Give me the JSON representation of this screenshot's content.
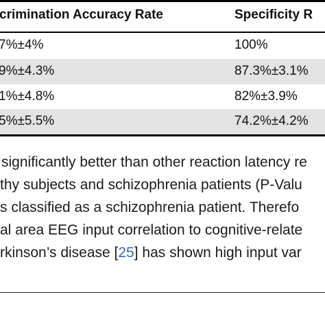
{
  "table": {
    "headers": {
      "col1": "crimination Accuracy Rate",
      "col2": "Specificity R"
    },
    "rows": [
      {
        "col1": "7%±4%",
        "col2": "100%"
      },
      {
        "col1": "9%±4.3%",
        "col2": "87.3%±3.1%"
      },
      {
        "col1": "1%±4.8%",
        "col2": "82%±3.9%"
      },
      {
        "col1": "5%±5.5%",
        "col2": "74.2%±4.2%"
      }
    ]
  },
  "body_text": {
    "line1": "significantly better than other reaction latency re",
    "line2": "thy subjects and schizophrenia patients (P-Valu",
    "line3": "s classified as a schizophrenia patient. Therefo",
    "line4": "al area EEG input correlation to cognitive-relate",
    "line5_before": "rkinson’s disease [",
    "line5_cite": "25",
    "line5_after": "] has shown high input var"
  }
}
